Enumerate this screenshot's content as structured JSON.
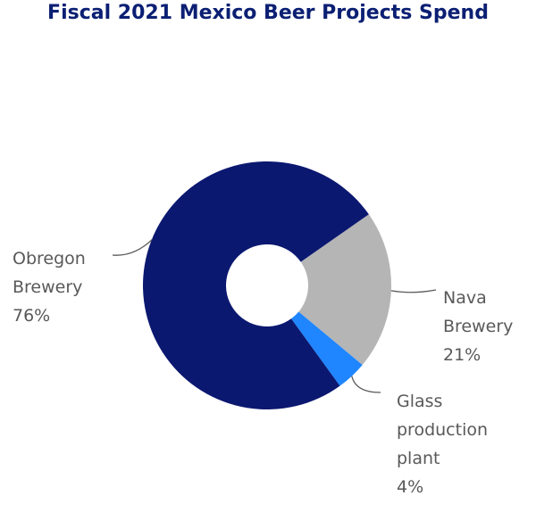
{
  "chart_data": {
    "type": "pie",
    "donut": true,
    "title": "Fiscal 2021 Mexico Beer Projects Spend",
    "slices": [
      {
        "name": "Nava Brewery",
        "name_lines": [
          "Nava",
          "Brewery"
        ],
        "value": 21,
        "value_label": "21%",
        "color": "#b5b5b5"
      },
      {
        "name": "Glass production plant",
        "name_lines": [
          "Glass",
          "production",
          "plant"
        ],
        "value": 4,
        "value_label": "4%",
        "color": "#1f86ff"
      },
      {
        "name": "Obregon Brewery",
        "name_lines": [
          "Obregon",
          "Brewery"
        ],
        "value": 76,
        "value_label": "76%",
        "color": "#0b1870"
      }
    ],
    "legend": "none",
    "colors": {
      "title": "#0b1f73",
      "label_text": "#595959",
      "leader_line": "#595959"
    }
  }
}
